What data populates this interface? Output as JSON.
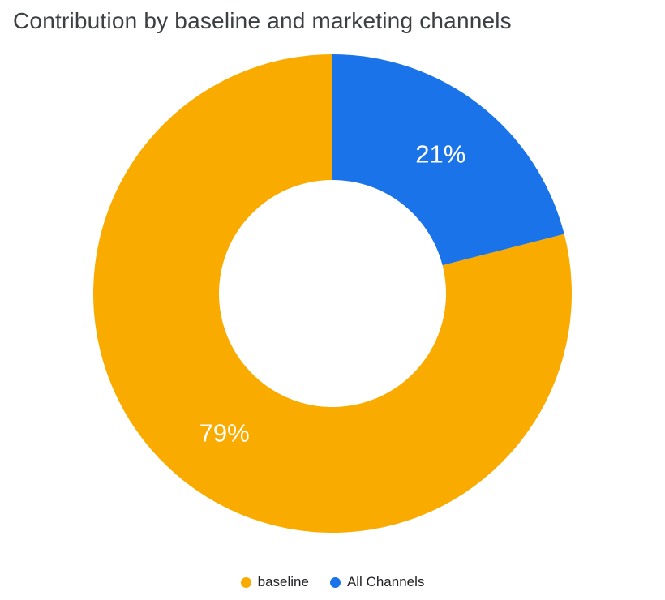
{
  "chart_data": {
    "type": "pie",
    "subtype": "donut",
    "title": "Contribution by baseline and marketing channels",
    "title_color": "#3C4043",
    "background": "#FFFFFF",
    "direction": "counterclockwise",
    "start_angle": 0,
    "inner_radius_ratio": 0.475,
    "data_label_color": "#FFFFFF",
    "legend_position": "bottom",
    "slices": [
      {
        "label": "baseline",
        "value": 79,
        "display": "79%",
        "color": "#F9AB00"
      },
      {
        "label": "All Channels",
        "value": 21,
        "display": "21%",
        "color": "#1A73E8"
      }
    ]
  }
}
